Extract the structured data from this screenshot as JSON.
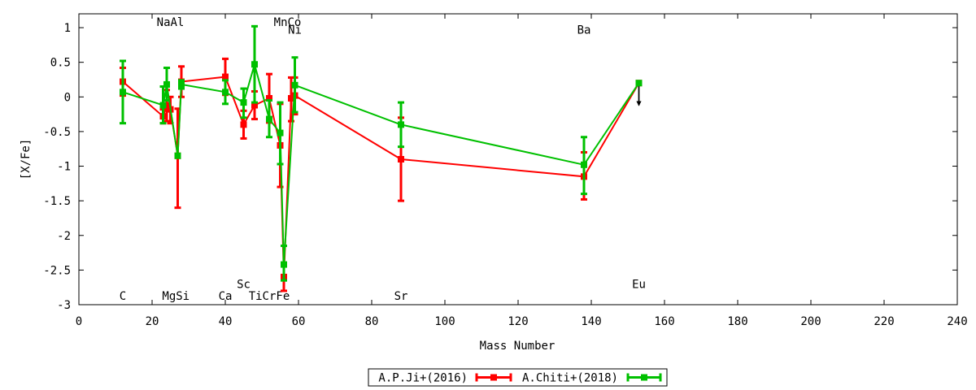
{
  "chart_data": {
    "type": "line",
    "title": "",
    "xlabel": "Mass Number",
    "ylabel": "[X/Fe]",
    "xlim": [
      0,
      240
    ],
    "ylim": [
      -3,
      1.2
    ],
    "xticks": [
      0,
      20,
      40,
      60,
      80,
      100,
      120,
      140,
      160,
      180,
      200,
      220,
      240
    ],
    "yticks": [
      -3,
      -2.5,
      -2,
      -1.5,
      -1,
      -0.5,
      0,
      0.5,
      1
    ],
    "ytick_labels": [
      "-3",
      "-2.5",
      "-2",
      "-1.5",
      "-1",
      "-0.5",
      "0",
      "0.5",
      "1"
    ],
    "grid": false,
    "legend_position": "bottom-center",
    "element_labels": [
      {
        "text": "NaAl",
        "x": 25,
        "y": 1.08
      },
      {
        "text": "MnCo",
        "x": 57,
        "y": 1.08
      },
      {
        "text": "Ni",
        "x": 59,
        "y": 0.97
      },
      {
        "text": "Ba",
        "x": 138,
        "y": 0.97
      },
      {
        "text": "Sc",
        "x": 45,
        "y": -2.7
      },
      {
        "text": "Eu",
        "x": 153,
        "y": -2.7
      },
      {
        "text": "C",
        "x": 12,
        "y": -2.87
      },
      {
        "text": "MgSi",
        "x": 26.5,
        "y": -2.87
      },
      {
        "text": "Ca",
        "x": 40,
        "y": -2.87
      },
      {
        "text": "TiCrFe",
        "x": 52,
        "y": -2.87
      },
      {
        "text": "Sr",
        "x": 88,
        "y": -2.87
      }
    ],
    "series": [
      {
        "name": "A.P.Ji+(2016)",
        "color": "#ff0000",
        "points": [
          {
            "x": 12,
            "y": 0.22,
            "lo": 0.02,
            "hi": 0.42
          },
          {
            "x": 23,
            "y": -0.28,
            "lo": -0.38,
            "hi": -0.18
          },
          {
            "x": 24,
            "y": -0.12,
            "lo": -0.35,
            "hi": 0.1
          },
          {
            "x": 25,
            "y": -0.18,
            "lo": -0.38,
            "hi": 0.0
          },
          {
            "x": 27,
            "y": -0.85,
            "lo": -1.6,
            "hi": -0.17
          },
          {
            "x": 28,
            "y": 0.22,
            "lo": 0.0,
            "hi": 0.44
          },
          {
            "x": 40,
            "y": 0.29,
            "lo": 0.03,
            "hi": 0.55
          },
          {
            "x": 45,
            "y": -0.4,
            "lo": -0.6,
            "hi": -0.2
          },
          {
            "x": 48,
            "y": -0.12,
            "lo": -0.32,
            "hi": 0.08
          },
          {
            "x": 52,
            "y": -0.02,
            "lo": -0.37,
            "hi": 0.33
          },
          {
            "x": 55,
            "y": -0.7,
            "lo": -1.3,
            "hi": -0.1
          },
          {
            "x": 56,
            "y": -2.6,
            "lo": -2.8,
            "hi": -2.4
          },
          {
            "x": 58,
            "y": -0.02,
            "lo": -0.35,
            "hi": 0.28
          },
          {
            "x": 59,
            "y": 0.02,
            "lo": -0.25,
            "hi": 0.28
          },
          {
            "x": 88,
            "y": -0.9,
            "lo": -1.5,
            "hi": -0.3
          },
          {
            "x": 138,
            "y": -1.15,
            "lo": -1.48,
            "hi": -0.8
          },
          {
            "x": 153,
            "y": 0.2,
            "upper_limit": true
          }
        ]
      },
      {
        "name": "A.Chiti+(2018)",
        "color": "#00c000",
        "points": [
          {
            "x": 12,
            "y": 0.07,
            "lo": -0.38,
            "hi": 0.52
          },
          {
            "x": 23,
            "y": -0.12,
            "lo": -0.38,
            "hi": 0.15
          },
          {
            "x": 24,
            "y": 0.18,
            "lo": -0.05,
            "hi": 0.42
          },
          {
            "x": 27,
            "y": -0.85,
            "lo": -0.85,
            "hi": -0.85
          },
          {
            "x": 28,
            "y": 0.18,
            "lo": 0.12,
            "hi": 0.24
          },
          {
            "x": 40,
            "y": 0.07,
            "lo": -0.1,
            "hi": 0.24
          },
          {
            "x": 45,
            "y": -0.08,
            "lo": -0.3,
            "hi": 0.12
          },
          {
            "x": 48,
            "y": 0.47,
            "lo": -0.08,
            "hi": 1.02
          },
          {
            "x": 52,
            "y": -0.32,
            "lo": -0.58,
            "hi": -0.05
          },
          {
            "x": 55,
            "y": -0.52,
            "lo": -0.97,
            "hi": -0.08
          },
          {
            "x": 56,
            "y": -2.42,
            "lo": -2.65,
            "hi": -2.15
          },
          {
            "x": 59,
            "y": 0.17,
            "lo": -0.22,
            "hi": 0.57
          },
          {
            "x": 88,
            "y": -0.4,
            "lo": -0.72,
            "hi": -0.08
          },
          {
            "x": 138,
            "y": -0.98,
            "lo": -1.4,
            "hi": -0.58
          },
          {
            "x": 153,
            "y": 0.2,
            "upper_limit": true
          }
        ]
      }
    ]
  }
}
